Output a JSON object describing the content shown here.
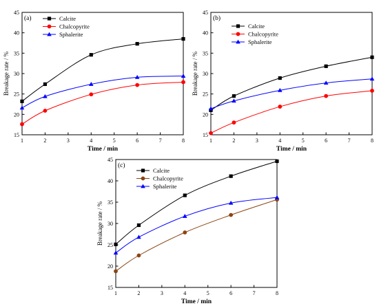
{
  "chart_data": [
    {
      "type": "line",
      "panel_label": "(a)",
      "xlabel": "Time / min",
      "ylabel": "Breakage rate / %",
      "xlim": [
        1,
        8
      ],
      "ylim": [
        15,
        45
      ],
      "xticks": [
        1,
        2,
        3,
        4,
        5,
        6,
        7,
        8
      ],
      "yticks": [
        15,
        20,
        25,
        30,
        35,
        40,
        45
      ],
      "legend_position": "top-left",
      "x": [
        1,
        2,
        4,
        6,
        8
      ],
      "series": [
        {
          "name": "Calcite",
          "color": "#000000",
          "marker": "square",
          "values": [
            23.2,
            27.4,
            34.6,
            37.3,
            38.5
          ]
        },
        {
          "name": "Chalcopyrite",
          "color": "#ff0000",
          "marker": "circle",
          "values": [
            17.6,
            20.9,
            24.9,
            27.2,
            27.9
          ]
        },
        {
          "name": "Sphalerite",
          "color": "#0000ff",
          "marker": "triangle",
          "values": [
            21.6,
            24.4,
            27.4,
            29.1,
            29.4
          ]
        }
      ]
    },
    {
      "type": "line",
      "panel_label": "(b)",
      "xlabel": "Time / min",
      "ylabel": "Breakage rate / %",
      "xlim": [
        1,
        8
      ],
      "ylim": [
        15,
        45
      ],
      "xticks": [
        1,
        2,
        3,
        4,
        5,
        6,
        7,
        8
      ],
      "yticks": [
        15,
        20,
        25,
        30,
        35,
        40,
        45
      ],
      "legend_position": "top-left",
      "x": [
        1,
        2,
        4,
        6,
        8
      ],
      "series": [
        {
          "name": "Calcite",
          "color": "#000000",
          "marker": "square",
          "values": [
            21.0,
            24.5,
            28.9,
            31.8,
            34.0
          ]
        },
        {
          "name": "Chalcopyrite",
          "color": "#ff0000",
          "marker": "circle",
          "values": [
            15.4,
            18.0,
            21.9,
            24.5,
            25.8
          ]
        },
        {
          "name": "Sphalerite",
          "color": "#0000ff",
          "marker": "triangle",
          "values": [
            21.4,
            23.3,
            25.9,
            27.7,
            28.7
          ]
        }
      ]
    },
    {
      "type": "line",
      "panel_label": "(c)",
      "xlabel": "Time / min",
      "ylabel": "Breakage rate / %",
      "xlim": [
        1,
        8
      ],
      "ylim": [
        15,
        45
      ],
      "xticks": [
        1,
        2,
        3,
        4,
        5,
        6,
        7,
        8
      ],
      "yticks": [
        15,
        20,
        25,
        30,
        35,
        40,
        45
      ],
      "legend_position": "top-left",
      "x": [
        1,
        2,
        4,
        6,
        8
      ],
      "series": [
        {
          "name": "Calcite",
          "color": "#000000",
          "marker": "square",
          "values": [
            25.1,
            29.6,
            36.6,
            41.1,
            44.6
          ]
        },
        {
          "name": "Chalcopyrite",
          "color": "#8b4513",
          "marker": "circle",
          "values": [
            18.8,
            22.5,
            27.9,
            32.0,
            35.6
          ]
        },
        {
          "name": "Sphalerite",
          "color": "#0000ff",
          "marker": "triangle",
          "values": [
            23.1,
            26.8,
            31.7,
            34.8,
            36.1
          ]
        }
      ]
    }
  ]
}
